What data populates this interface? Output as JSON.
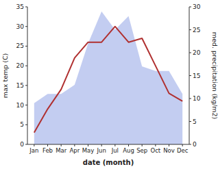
{
  "chart_data": {
    "type": "line",
    "x_label": "date (month)",
    "y_label": "max temp (C)",
    "y2_label": "med. precipitation (kg/m2)",
    "categories": [
      "Jan",
      "Feb",
      "Mar",
      "Apr",
      "May",
      "Jun",
      "Jul",
      "Aug",
      "Sep",
      "Oct",
      "Nov",
      "Dec"
    ],
    "series": [
      {
        "type": "area",
        "axis": "y2",
        "color": "#b8c4ee",
        "values": [
          9,
          11,
          11,
          13,
          22,
          29,
          25,
          28,
          17,
          16,
          16,
          11
        ]
      },
      {
        "type": "line",
        "color": "#b03030",
        "values": [
          3,
          9,
          14,
          22,
          26,
          26,
          30,
          26,
          27,
          20,
          13,
          11
        ]
      }
    ],
    "ylim": [
      0,
      35
    ],
    "yticks": [
      0,
      5,
      10,
      15,
      20,
      25,
      30,
      35
    ],
    "y2lim": [
      0,
      30
    ],
    "y2ticks": [
      0,
      5,
      10,
      15,
      20,
      25,
      30
    ],
    "grid": false
  }
}
